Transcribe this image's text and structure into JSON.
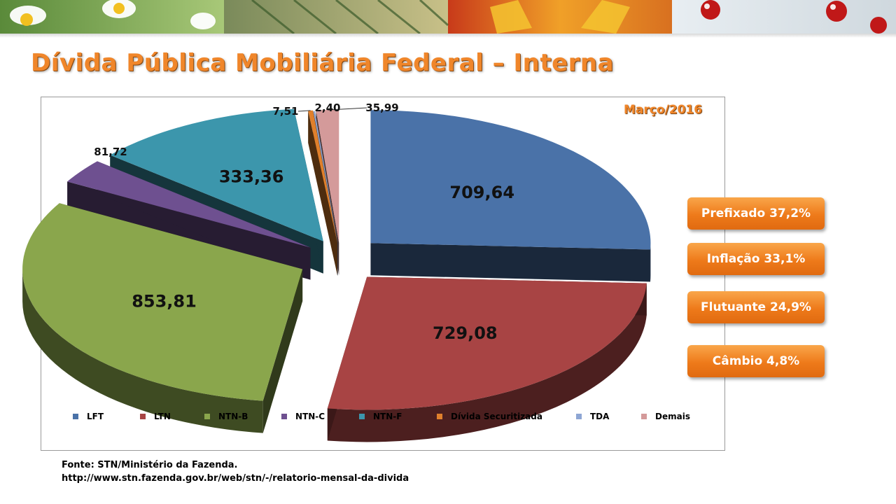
{
  "page": {
    "title": "Dívida Pública Mobiliária Federal – Interna",
    "source_line1": "Fonte: STN/Ministério da Fazenda.",
    "source_line2": "http://www.stn.fazenda.gov.br/web/stn/-/relatorio-mensal-da-divida"
  },
  "side_buttons": [
    {
      "label": "Prefixado 37,2%"
    },
    {
      "label": "Inflação 33,1%"
    },
    {
      "label": "Flutuante 24,9%"
    },
    {
      "label": "Câmbio 4,8%"
    }
  ],
  "colors": {
    "title_orange": "#f0862a",
    "button_orange": "#ee7a1a"
  },
  "chart_data": {
    "type": "pie",
    "title": "",
    "period": "Março/2016",
    "legend_position": "bottom",
    "labels": [
      "LFT",
      "LTN",
      "NTN-B",
      "NTN-C",
      "NTN-F",
      "Dívida Securitizada",
      "TDA",
      "Demais"
    ],
    "values": [
      709.64,
      729.08,
      853.81,
      81.72,
      333.36,
      7.51,
      2.4,
      35.99
    ],
    "value_labels": [
      "709,64",
      "729,08",
      "853,81",
      "81,72",
      "333,36",
      "7,51",
      "2,40",
      "35,99"
    ],
    "colors": [
      "#4a72a8",
      "#a84444",
      "#8aa64c",
      "#6e5090",
      "#3c96ac",
      "#e0802c",
      "#8ea6d4",
      "#d49a9a"
    ]
  }
}
